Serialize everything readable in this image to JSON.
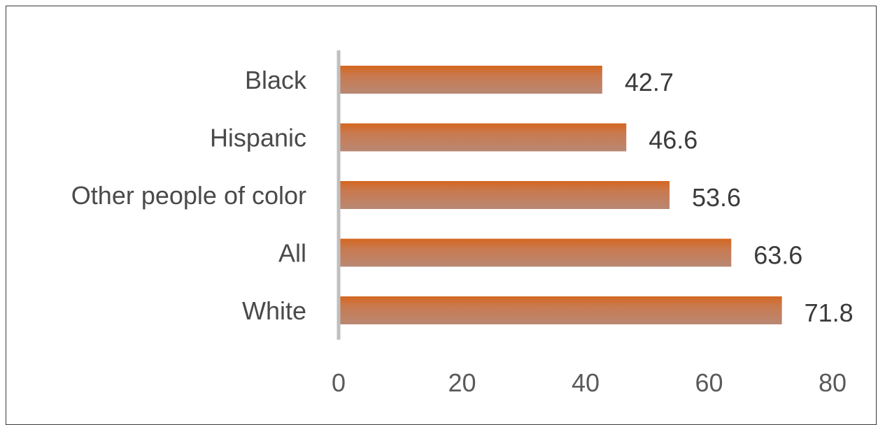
{
  "chart_data": {
    "type": "bar",
    "orientation": "horizontal",
    "title": "",
    "xlabel": "",
    "ylabel": "",
    "categories": [
      "Black",
      "Hispanic",
      "Other people of color",
      "All",
      "White"
    ],
    "values": [
      42.7,
      46.6,
      53.6,
      63.6,
      71.8
    ],
    "value_labels": [
      "42.7",
      "46.6",
      "53.6",
      "63.6",
      "71.8"
    ],
    "xlim": [
      0,
      80
    ],
    "x_ticks": [
      0,
      20,
      40,
      60,
      80
    ],
    "x_tick_labels": [
      "0",
      "20",
      "40",
      "60",
      "80"
    ],
    "grid": false,
    "legend": "none",
    "colors": {
      "bar_top": "#d4661f",
      "bar_bottom": "#b98873",
      "axis": "#bfbfbf",
      "frame": "#3a3a3a"
    }
  }
}
